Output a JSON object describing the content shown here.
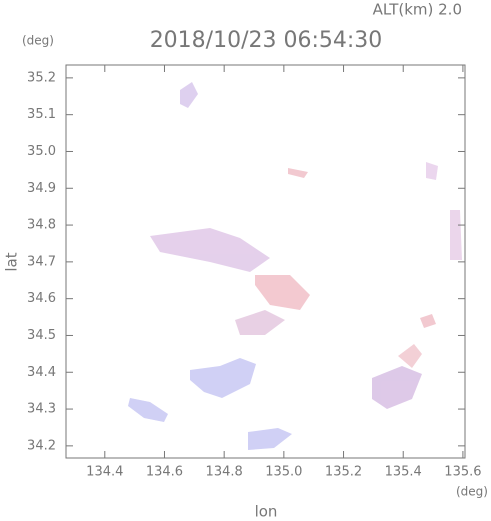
{
  "chart_data": {
    "type": "map",
    "title": "2018/10/23 06:54:30",
    "subtitle": "ALT(km) 2.0",
    "x_label": "lon",
    "x_unit": "(deg)",
    "y_label": "lat",
    "y_unit": "(deg)",
    "xlim": [
      134.27,
      135.607
    ],
    "ylim": [
      34.167,
      35.235
    ],
    "xticks": [
      134.4,
      134.6,
      134.8,
      {
        "value": 135,
        "label": "135.0"
      },
      135.2,
      135.4,
      135.6
    ],
    "yticks": [
      34.2,
      34.3,
      34.4,
      34.5,
      34.6,
      34.7,
      34.8,
      34.9,
      {
        "value": 35,
        "label": "35.0"
      },
      35.1,
      35.2
    ]
  }
}
